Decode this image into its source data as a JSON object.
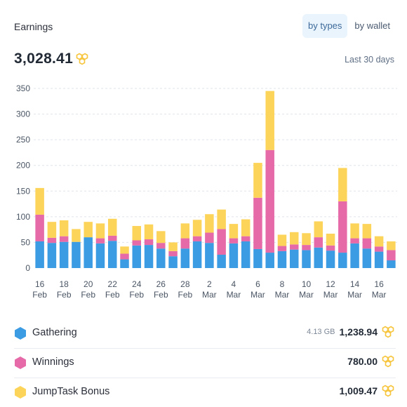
{
  "header": {
    "title": "Earnings",
    "tabs": [
      {
        "label": "by types",
        "active": true
      },
      {
        "label": "by wallet",
        "active": false
      }
    ]
  },
  "total": {
    "value": "3,028.41",
    "period": "Last 30 days"
  },
  "colors": {
    "gathering": "#3b9be3",
    "winnings": "#e66aa8",
    "bonus": "#fdd45a",
    "coin": "#f7c53d"
  },
  "chart_data": {
    "type": "bar",
    "stacked": true,
    "ylim": [
      0,
      350
    ],
    "yticks": [
      0,
      50,
      100,
      150,
      200,
      250,
      300,
      350
    ],
    "grid": true,
    "categories": [
      "16 Feb",
      "17 Feb",
      "18 Feb",
      "19 Feb",
      "20 Feb",
      "21 Feb",
      "22 Feb",
      "23 Feb",
      "24 Feb",
      "25 Feb",
      "26 Feb",
      "27 Feb",
      "28 Feb",
      "1 Mar",
      "2 Mar",
      "3 Mar",
      "4 Mar",
      "5 Mar",
      "6 Mar",
      "7 Mar",
      "8 Mar",
      "9 Mar",
      "10 Mar",
      "11 Mar",
      "12 Mar",
      "13 Mar",
      "14 Mar",
      "15 Mar",
      "16 Mar",
      "17 Mar"
    ],
    "xtick_labels": [
      {
        "index": 0,
        "day": "16",
        "month": "Feb"
      },
      {
        "index": 2,
        "day": "18",
        "month": "Feb"
      },
      {
        "index": 4,
        "day": "20",
        "month": "Feb"
      },
      {
        "index": 6,
        "day": "22",
        "month": "Feb"
      },
      {
        "index": 8,
        "day": "24",
        "month": "Feb"
      },
      {
        "index": 10,
        "day": "26",
        "month": "Feb"
      },
      {
        "index": 12,
        "day": "28",
        "month": "Feb"
      },
      {
        "index": 14,
        "day": "2",
        "month": "Mar"
      },
      {
        "index": 16,
        "day": "4",
        "month": "Mar"
      },
      {
        "index": 18,
        "day": "6",
        "month": "Mar"
      },
      {
        "index": 20,
        "day": "8",
        "month": "Mar"
      },
      {
        "index": 22,
        "day": "10",
        "month": "Mar"
      },
      {
        "index": 24,
        "day": "12",
        "month": "Mar"
      },
      {
        "index": 26,
        "day": "14",
        "month": "Mar"
      },
      {
        "index": 28,
        "day": "16",
        "month": "Mar"
      }
    ],
    "series": [
      {
        "name": "Gathering",
        "color": "#3b9be3",
        "values": [
          52,
          49,
          51,
          51,
          60,
          48,
          53,
          17,
          44,
          45,
          38,
          23,
          38,
          52,
          49,
          26,
          48,
          52,
          37,
          30,
          33,
          36,
          35,
          40,
          34,
          30,
          48,
          38,
          32,
          15
        ]
      },
      {
        "name": "Winnings",
        "color": "#e66aa8",
        "values": [
          52,
          10,
          11,
          0,
          0,
          10,
          10,
          11,
          10,
          11,
          11,
          10,
          20,
          10,
          20,
          50,
          10,
          10,
          100,
          200,
          10,
          10,
          10,
          20,
          10,
          100,
          10,
          20,
          10,
          20
        ]
      },
      {
        "name": "JumpTask Bonus",
        "color": "#fdd45a",
        "values": [
          52,
          31,
          31,
          25,
          30,
          29,
          33,
          14,
          28,
          29,
          23,
          17,
          29,
          32,
          36,
          38,
          28,
          33,
          68,
          115,
          22,
          24,
          23,
          31,
          23,
          65,
          29,
          28,
          20,
          17
        ]
      }
    ]
  },
  "legend": [
    {
      "label": "Gathering",
      "size": "4.13 GB",
      "amount": "1,238.94",
      "color": "#3b9be3"
    },
    {
      "label": "Winnings",
      "size": "",
      "amount": "780.00",
      "color": "#e66aa8"
    },
    {
      "label": "JumpTask Bonus",
      "size": "",
      "amount": "1,009.47",
      "color": "#fdd45a"
    }
  ],
  "icons": {
    "coin": "honeycomb-coin-icon",
    "legend_marker": "hexagon-icon"
  }
}
